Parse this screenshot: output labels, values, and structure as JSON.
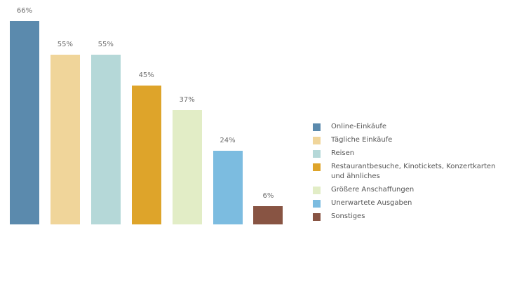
{
  "chart_data": {
    "type": "bar",
    "title": "",
    "xlabel": "",
    "ylabel": "",
    "ylim": [
      0,
      70
    ],
    "grid": false,
    "legend_position": "right",
    "categories": [
      "Online-Einkäufe",
      "Tägliche Einkäufe",
      "Reisen",
      "Restaurantbesuche, Kinotickets, Konzertkarten und ähnliches",
      "Größere Anschaffungen",
      "Unerwartete Ausgaben",
      "Sonstiges"
    ],
    "values": [
      66,
      55,
      55,
      45,
      37,
      24,
      6
    ],
    "value_labels": [
      "66%",
      "55%",
      "55%",
      "45%",
      "37%",
      "24%",
      "6%"
    ],
    "colors": [
      "#5b8aad",
      "#f0d59a",
      "#b5d8d8",
      "#dea42a",
      "#e2edc6",
      "#7cbce0",
      "#885443"
    ]
  },
  "legend": {
    "items": [
      {
        "label": "Online-Einkäufe",
        "color": "#5b8aad"
      },
      {
        "label": "Tägliche Einkäufe",
        "color": "#f0d59a"
      },
      {
        "label": "Reisen",
        "color": "#b5d8d8"
      },
      {
        "label": "Restaurantbesuche, Kinotickets, Konzertkarten und ähnliches",
        "color": "#dea42a"
      },
      {
        "label": "Größere Anschaffungen",
        "color": "#e2edc6"
      },
      {
        "label": "Unerwartete Ausgaben",
        "color": "#7cbce0"
      },
      {
        "label": "Sonstiges",
        "color": "#885443"
      }
    ]
  }
}
